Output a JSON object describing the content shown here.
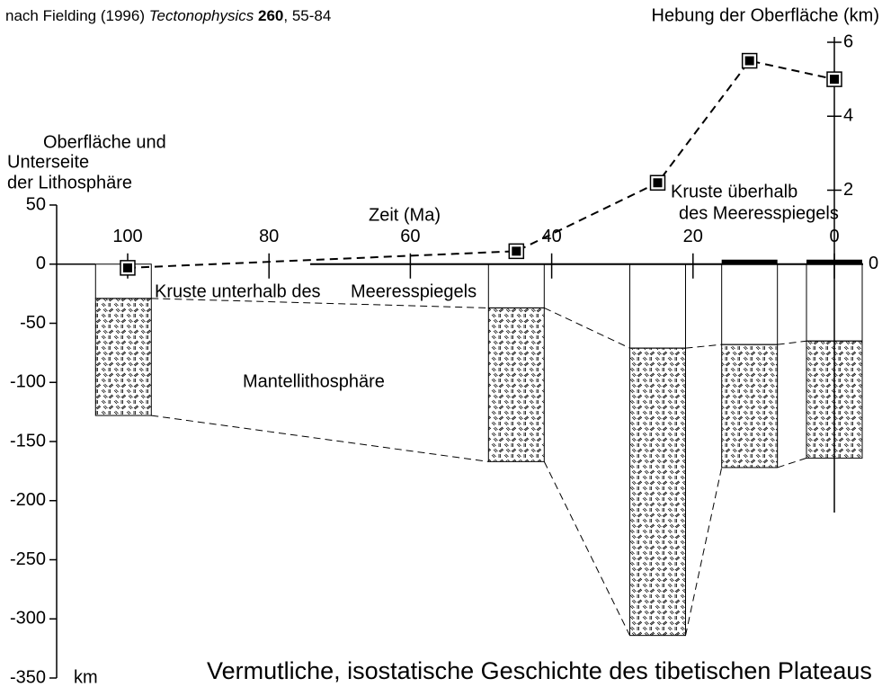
{
  "source": {
    "text": "nach Fielding (1996)",
    "journal": "Tectonophysics",
    "volume": "260",
    "pages": ", 55-84"
  },
  "chart_data": {
    "type": "line",
    "title": "Vermutliche, isostatische Geschichte des tibetischen Plateaus",
    "y_label": [
      "Oberfläche und",
      "Unterseite",
      "der Lithosphäre"
    ],
    "y_unit": "km",
    "x_label": "Zeit (Ma)",
    "y2_label": "Hebung der Oberfläche (km)",
    "xlim": [
      100,
      0
    ],
    "xticks": [
      100,
      80,
      60,
      40,
      20,
      0
    ],
    "ylim": [
      -350,
      50
    ],
    "yticks": [
      50,
      0,
      -50,
      -100,
      -150,
      -200,
      -250,
      -300,
      -350
    ],
    "y2lim": [
      0,
      6
    ],
    "y2ticks": [
      0,
      2,
      4,
      6
    ],
    "series": [
      {
        "name": "Hebung der Oberfläche",
        "axis": "y2",
        "color": "#000000",
        "x": [
          100,
          45,
          25,
          12,
          0
        ],
        "values": [
          -0.1,
          0.35,
          2.2,
          5.5,
          5
        ]
      }
    ],
    "columns": {
      "x": [
        100.6,
        45,
        25,
        12,
        0
      ],
      "crust_base": [
        -29,
        -37,
        -71,
        -68,
        -65
      ],
      "lithosphere_base": [
        -128,
        -167,
        -314,
        -172,
        -164
      ]
    },
    "annotations": [
      "Kruste unterhalb des",
      "Meeresspiegels",
      "Kruste überhalb",
      "des Meeresspiegels",
      "Mantellithosphäre"
    ]
  }
}
